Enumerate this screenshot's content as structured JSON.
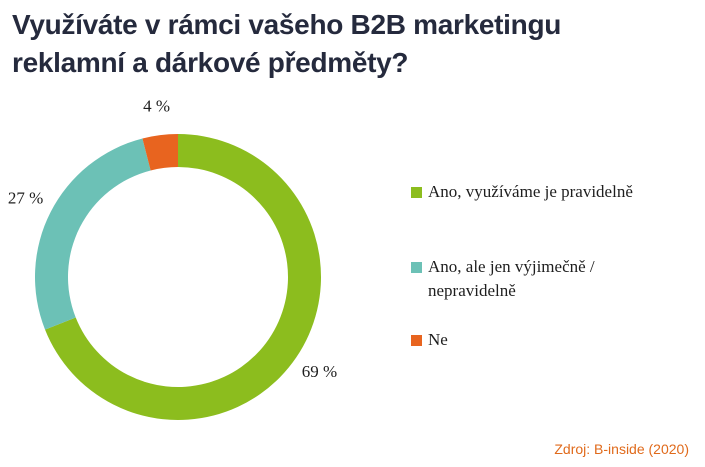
{
  "title": {
    "line1": "Využíváte v rámci vašeho B2B marketingu",
    "line2": "reklamní a dárkové předměty?"
  },
  "source": "Zdroj: B-inside (2020)",
  "chart_data": {
    "type": "pie",
    "variant": "donut",
    "title": "Využíváte v rámci vašeho B2B marketingu reklamní a dárkové předměty?",
    "categories": [
      "Ano, využíváme je pravidelně",
      "Ano, ale jen výjimečně / nepravidelně",
      "Ne"
    ],
    "values": [
      69,
      27,
      4
    ],
    "value_labels": [
      "69 %",
      "27 %",
      "4 %"
    ],
    "colors": [
      "#8cbd1e",
      "#6cc1b6",
      "#e8641f"
    ],
    "legend_position": "right"
  },
  "legend": {
    "items": [
      {
        "label": "Ano, využíváme je pravidelně",
        "color": "#8cbd1e"
      },
      {
        "label": "Ano, ale jen výjimečně / nepravidelně",
        "color": "#6cc1b6"
      },
      {
        "label": "Ne",
        "color": "#e8641f"
      }
    ]
  }
}
